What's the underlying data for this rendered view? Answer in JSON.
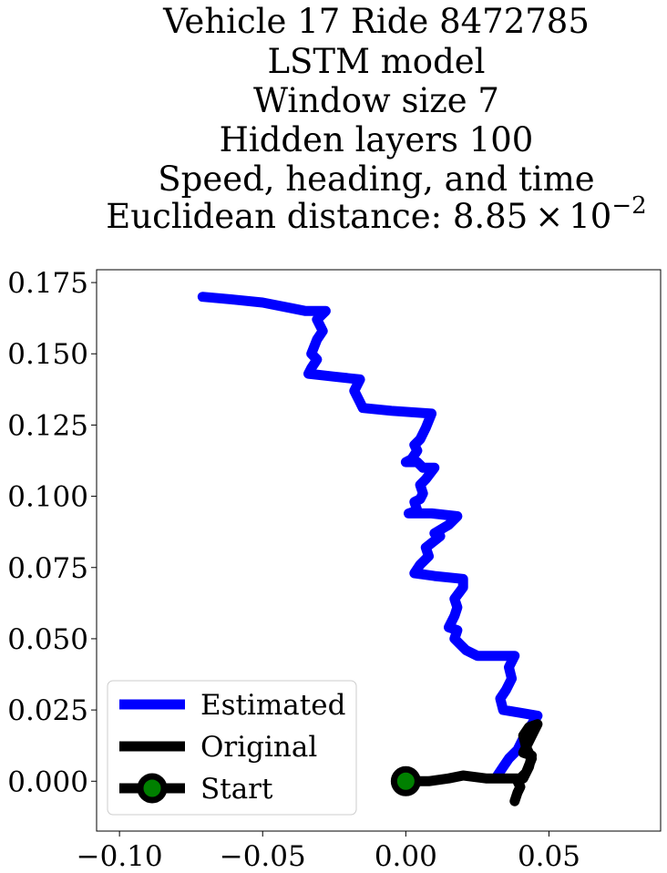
{
  "chart_data": {
    "type": "line",
    "title_lines": [
      "Vehicle 17 Ride 8472785",
      "LSTM model",
      "Window size 7",
      "Hidden layers 100",
      "Speed, heading, and time"
    ],
    "title_metric_prefix": "Euclidean distance: 8.85",
    "title_metric_times": "×",
    "title_metric_base": "10",
    "title_metric_exponent": "−2",
    "xlabel": "",
    "ylabel": "",
    "xlim": [
      -0.108,
      0.089
    ],
    "ylim": [
      -0.0175,
      0.1795
    ],
    "xticks": [
      -0.1,
      -0.05,
      0.0,
      0.05
    ],
    "xtick_labels": [
      "−0.10",
      "−0.05",
      "0.00",
      "0.05"
    ],
    "yticks": [
      0.0,
      0.025,
      0.05,
      0.075,
      0.1,
      0.125,
      0.15,
      0.175
    ],
    "ytick_labels": [
      "0.000",
      "0.025",
      "0.050",
      "0.075",
      "0.100",
      "0.125",
      "0.150",
      "0.175"
    ],
    "grid": false,
    "legend_position": "lower-left",
    "series": [
      {
        "name": "Estimated",
        "color": "#0000ff",
        "x": [
          -0.071,
          -0.06,
          -0.05,
          -0.04,
          -0.035,
          -0.028,
          -0.031,
          -0.029,
          -0.031,
          -0.033,
          -0.031,
          -0.033,
          -0.034,
          -0.025,
          -0.016,
          -0.018,
          -0.016,
          -0.015,
          -0.005,
          0.009,
          0.007,
          0.005,
          0.003,
          0.004,
          0.002,
          0.0,
          0.004,
          0.006,
          0.01,
          0.007,
          0.005,
          0.006,
          0.005,
          0.003,
          0.004,
          0.001,
          0.009,
          0.018,
          0.015,
          0.01,
          0.012,
          0.007,
          0.008,
          0.005,
          0.003,
          0.01,
          0.02,
          0.02,
          0.017,
          0.018,
          0.017,
          0.015,
          0.018,
          0.017,
          0.021,
          0.025,
          0.035,
          0.038,
          0.036,
          0.037,
          0.035,
          0.033,
          0.034,
          0.04,
          0.046,
          0.042,
          0.039,
          0.036,
          0.034,
          0.032
        ],
        "y": [
          0.17,
          0.169,
          0.168,
          0.166,
          0.165,
          0.165,
          0.162,
          0.158,
          0.155,
          0.15,
          0.148,
          0.145,
          0.143,
          0.142,
          0.141,
          0.137,
          0.133,
          0.131,
          0.13,
          0.129,
          0.124,
          0.12,
          0.118,
          0.116,
          0.113,
          0.112,
          0.112,
          0.11,
          0.11,
          0.106,
          0.104,
          0.101,
          0.099,
          0.098,
          0.095,
          0.094,
          0.094,
          0.093,
          0.09,
          0.087,
          0.086,
          0.082,
          0.079,
          0.076,
          0.073,
          0.072,
          0.071,
          0.068,
          0.064,
          0.061,
          0.058,
          0.054,
          0.053,
          0.05,
          0.046,
          0.044,
          0.044,
          0.044,
          0.04,
          0.036,
          0.032,
          0.029,
          0.025,
          0.024,
          0.023,
          0.017,
          0.011,
          0.008,
          0.005,
          0.002
        ]
      },
      {
        "name": "Original",
        "color": "#000000",
        "x": [
          0.0,
          0.008,
          0.015,
          0.02,
          0.028,
          0.036,
          0.04,
          0.042,
          0.044,
          0.042,
          0.041,
          0.043,
          0.046,
          0.043,
          0.041,
          0.044,
          0.043,
          0.041,
          0.039,
          0.04,
          0.039,
          0.038
        ],
        "y": [
          0.0,
          0.0,
          0.001,
          0.002,
          0.001,
          0.001,
          0.001,
          0.003,
          0.008,
          0.012,
          0.016,
          0.019,
          0.02,
          0.014,
          0.01,
          0.009,
          0.005,
          0.001,
          0.0,
          -0.002,
          -0.004,
          -0.007
        ]
      }
    ],
    "start_point": {
      "x": 0.0,
      "y": 0.0,
      "label": "Start",
      "marker_face": "#008000",
      "marker_edge": "#000000"
    },
    "legend": [
      "Estimated",
      "Original",
      "Start"
    ]
  }
}
